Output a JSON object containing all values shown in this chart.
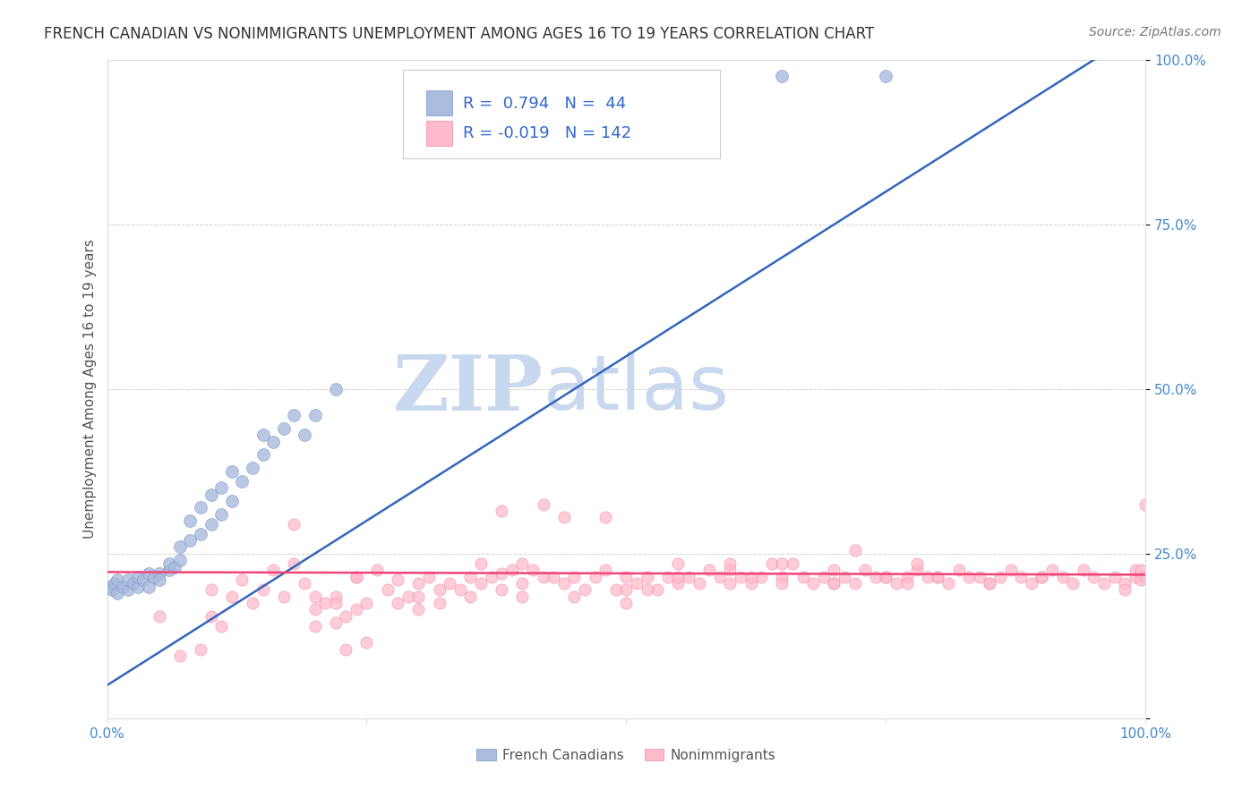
{
  "title": "FRENCH CANADIAN VS NONIMMIGRANTS UNEMPLOYMENT AMONG AGES 16 TO 19 YEARS CORRELATION CHART",
  "source": "Source: ZipAtlas.com",
  "ylabel": "Unemployment Among Ages 16 to 19 years",
  "xlim": [
    0.0,
    1.0
  ],
  "ylim": [
    0.0,
    1.0
  ],
  "xticks": [
    0.0,
    0.25,
    0.5,
    0.75,
    1.0
  ],
  "yticks": [
    0.0,
    0.25,
    0.5,
    0.75,
    1.0
  ],
  "xticklabels": [
    "0.0%",
    "",
    "",
    "",
    "100.0%"
  ],
  "yticklabels_right": [
    "",
    "25.0%",
    "50.0%",
    "75.0%",
    "100.0%"
  ],
  "title_color": "#333333",
  "source_color": "#777777",
  "axis_label_color": "#555555",
  "tick_color": "#4488cc",
  "grid_color": "#cccccc",
  "watermark_zip": "ZIP",
  "watermark_atlas": "atlas",
  "watermark_color_zip": "#c8d8ee",
  "watermark_color_atlas": "#c8d8ee",
  "blue_color": "#aabbdd",
  "blue_edge_color": "#7799cc",
  "pink_color": "#ffbbcc",
  "pink_edge_color": "#ee88aa",
  "blue_line_color": "#3366bb",
  "pink_line_color": "#ee4477",
  "R_blue": 0.794,
  "N_blue": 44,
  "R_pink": -0.019,
  "N_pink": 142,
  "legend_text_color": "#3366cc",
  "blue_scatter": [
    [
      0.0,
      0.2
    ],
    [
      0.005,
      0.195
    ],
    [
      0.007,
      0.205
    ],
    [
      0.01,
      0.19
    ],
    [
      0.01,
      0.21
    ],
    [
      0.015,
      0.2
    ],
    [
      0.02,
      0.195
    ],
    [
      0.02,
      0.21
    ],
    [
      0.025,
      0.205
    ],
    [
      0.03,
      0.2
    ],
    [
      0.03,
      0.215
    ],
    [
      0.035,
      0.21
    ],
    [
      0.04,
      0.2
    ],
    [
      0.04,
      0.22
    ],
    [
      0.045,
      0.215
    ],
    [
      0.05,
      0.22
    ],
    [
      0.05,
      0.21
    ],
    [
      0.06,
      0.225
    ],
    [
      0.06,
      0.235
    ],
    [
      0.065,
      0.23
    ],
    [
      0.07,
      0.24
    ],
    [
      0.07,
      0.26
    ],
    [
      0.08,
      0.27
    ],
    [
      0.08,
      0.3
    ],
    [
      0.09,
      0.28
    ],
    [
      0.09,
      0.32
    ],
    [
      0.1,
      0.295
    ],
    [
      0.1,
      0.34
    ],
    [
      0.11,
      0.31
    ],
    [
      0.11,
      0.35
    ],
    [
      0.12,
      0.33
    ],
    [
      0.12,
      0.375
    ],
    [
      0.13,
      0.36
    ],
    [
      0.14,
      0.38
    ],
    [
      0.15,
      0.4
    ],
    [
      0.15,
      0.43
    ],
    [
      0.16,
      0.42
    ],
    [
      0.17,
      0.44
    ],
    [
      0.18,
      0.46
    ],
    [
      0.19,
      0.43
    ],
    [
      0.2,
      0.46
    ],
    [
      0.22,
      0.5
    ],
    [
      0.65,
      0.975
    ],
    [
      0.75,
      0.975
    ]
  ],
  "pink_scatter": [
    [
      0.05,
      0.155
    ],
    [
      0.07,
      0.095
    ],
    [
      0.09,
      0.105
    ],
    [
      0.1,
      0.155
    ],
    [
      0.1,
      0.195
    ],
    [
      0.11,
      0.14
    ],
    [
      0.12,
      0.185
    ],
    [
      0.13,
      0.21
    ],
    [
      0.14,
      0.175
    ],
    [
      0.15,
      0.195
    ],
    [
      0.16,
      0.225
    ],
    [
      0.17,
      0.185
    ],
    [
      0.18,
      0.235
    ],
    [
      0.18,
      0.295
    ],
    [
      0.19,
      0.205
    ],
    [
      0.2,
      0.14
    ],
    [
      0.2,
      0.185
    ],
    [
      0.21,
      0.175
    ],
    [
      0.22,
      0.145
    ],
    [
      0.22,
      0.185
    ],
    [
      0.23,
      0.105
    ],
    [
      0.23,
      0.155
    ],
    [
      0.24,
      0.215
    ],
    [
      0.24,
      0.215
    ],
    [
      0.25,
      0.115
    ],
    [
      0.25,
      0.175
    ],
    [
      0.26,
      0.225
    ],
    [
      0.27,
      0.195
    ],
    [
      0.28,
      0.21
    ],
    [
      0.29,
      0.185
    ],
    [
      0.3,
      0.165
    ],
    [
      0.3,
      0.205
    ],
    [
      0.31,
      0.215
    ],
    [
      0.32,
      0.195
    ],
    [
      0.33,
      0.205
    ],
    [
      0.34,
      0.195
    ],
    [
      0.35,
      0.215
    ],
    [
      0.36,
      0.205
    ],
    [
      0.36,
      0.235
    ],
    [
      0.37,
      0.215
    ],
    [
      0.38,
      0.22
    ],
    [
      0.38,
      0.315
    ],
    [
      0.39,
      0.225
    ],
    [
      0.4,
      0.205
    ],
    [
      0.4,
      0.235
    ],
    [
      0.41,
      0.225
    ],
    [
      0.42,
      0.215
    ],
    [
      0.42,
      0.325
    ],
    [
      0.43,
      0.215
    ],
    [
      0.44,
      0.205
    ],
    [
      0.44,
      0.305
    ],
    [
      0.45,
      0.215
    ],
    [
      0.46,
      0.195
    ],
    [
      0.47,
      0.215
    ],
    [
      0.48,
      0.225
    ],
    [
      0.48,
      0.305
    ],
    [
      0.49,
      0.195
    ],
    [
      0.5,
      0.195
    ],
    [
      0.5,
      0.215
    ],
    [
      0.51,
      0.205
    ],
    [
      0.52,
      0.215
    ],
    [
      0.53,
      0.195
    ],
    [
      0.54,
      0.215
    ],
    [
      0.55,
      0.205
    ],
    [
      0.55,
      0.235
    ],
    [
      0.56,
      0.215
    ],
    [
      0.57,
      0.205
    ],
    [
      0.58,
      0.225
    ],
    [
      0.59,
      0.215
    ],
    [
      0.6,
      0.205
    ],
    [
      0.6,
      0.235
    ],
    [
      0.61,
      0.215
    ],
    [
      0.62,
      0.205
    ],
    [
      0.63,
      0.215
    ],
    [
      0.64,
      0.235
    ],
    [
      0.65,
      0.215
    ],
    [
      0.65,
      0.205
    ],
    [
      0.66,
      0.235
    ],
    [
      0.67,
      0.215
    ],
    [
      0.68,
      0.205
    ],
    [
      0.69,
      0.215
    ],
    [
      0.7,
      0.205
    ],
    [
      0.7,
      0.225
    ],
    [
      0.71,
      0.215
    ],
    [
      0.72,
      0.205
    ],
    [
      0.73,
      0.225
    ],
    [
      0.74,
      0.215
    ],
    [
      0.75,
      0.215
    ],
    [
      0.76,
      0.205
    ],
    [
      0.77,
      0.215
    ],
    [
      0.78,
      0.225
    ],
    [
      0.79,
      0.215
    ],
    [
      0.8,
      0.215
    ],
    [
      0.81,
      0.205
    ],
    [
      0.82,
      0.225
    ],
    [
      0.83,
      0.215
    ],
    [
      0.84,
      0.215
    ],
    [
      0.85,
      0.205
    ],
    [
      0.86,
      0.215
    ],
    [
      0.87,
      0.225
    ],
    [
      0.88,
      0.215
    ],
    [
      0.89,
      0.205
    ],
    [
      0.9,
      0.215
    ],
    [
      0.91,
      0.225
    ],
    [
      0.92,
      0.215
    ],
    [
      0.93,
      0.205
    ],
    [
      0.94,
      0.225
    ],
    [
      0.95,
      0.215
    ],
    [
      0.96,
      0.205
    ],
    [
      0.97,
      0.215
    ],
    [
      0.98,
      0.205
    ],
    [
      0.99,
      0.215
    ],
    [
      0.99,
      0.225
    ],
    [
      0.995,
      0.225
    ],
    [
      0.995,
      0.21
    ],
    [
      1.0,
      0.215
    ],
    [
      0.65,
      0.235
    ],
    [
      0.72,
      0.255
    ],
    [
      0.78,
      0.235
    ],
    [
      0.55,
      0.215
    ],
    [
      0.6,
      0.225
    ],
    [
      0.62,
      0.215
    ],
    [
      0.45,
      0.185
    ],
    [
      0.5,
      0.175
    ],
    [
      0.52,
      0.195
    ],
    [
      0.35,
      0.185
    ],
    [
      0.38,
      0.195
    ],
    [
      0.4,
      0.185
    ],
    [
      0.28,
      0.175
    ],
    [
      0.3,
      0.185
    ],
    [
      0.32,
      0.175
    ],
    [
      0.2,
      0.165
    ],
    [
      0.22,
      0.175
    ],
    [
      0.24,
      0.165
    ],
    [
      0.98,
      0.195
    ],
    [
      1.0,
      0.325
    ],
    [
      0.8,
      0.215
    ],
    [
      0.85,
      0.205
    ],
    [
      0.9,
      0.215
    ],
    [
      0.7,
      0.205
    ],
    [
      0.75,
      0.215
    ],
    [
      0.77,
      0.205
    ]
  ],
  "blue_line_x": [
    0.0,
    1.0
  ],
  "blue_line_y": [
    0.05,
    1.05
  ],
  "pink_line_x": [
    0.0,
    1.0
  ],
  "pink_line_y": [
    0.222,
    0.218
  ]
}
